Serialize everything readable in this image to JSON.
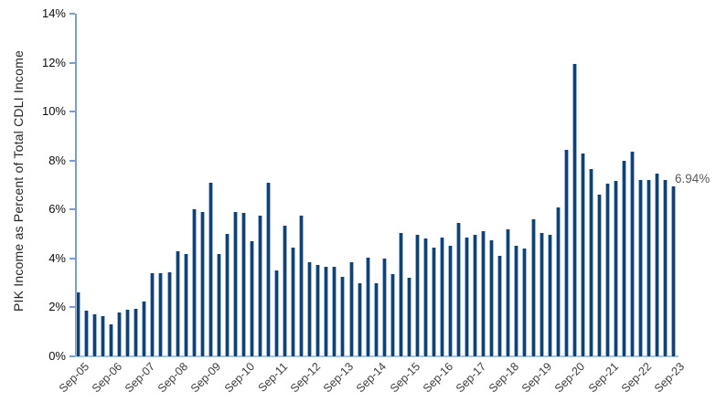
{
  "chart_data": {
    "type": "bar",
    "title": "",
    "xlabel": "",
    "ylabel": "PIK Income as Percent of Total CDLI Income",
    "ylim": [
      0,
      14
    ],
    "grid": false,
    "legend": null,
    "y_tick_labels": [
      "0%",
      "2%",
      "4%",
      "6%",
      "8%",
      "10%",
      "12%",
      "14%"
    ],
    "x_tick_labels": [
      "Sep-05",
      "Sep-06",
      "Sep-07",
      "Sep-08",
      "Sep-09",
      "Sep-10",
      "Sep-11",
      "Sep-12",
      "Sep-13",
      "Sep-14",
      "Sep-15",
      "Sep-16",
      "Sep-17",
      "Sep-18",
      "Sep-19",
      "Sep-20",
      "Sep-21",
      "Sep-22",
      "Sep-23"
    ],
    "x_tick_every_n_bars": 4,
    "bars_note": "73 quarterly bars from Sep-2005 through Sep-2023; x tick labels mark every 4th bar",
    "values": [
      2.6,
      1.85,
      1.7,
      1.65,
      1.3,
      1.8,
      1.9,
      1.95,
      2.25,
      3.4,
      3.4,
      3.45,
      4.3,
      4.2,
      6.0,
      5.9,
      7.1,
      4.2,
      5.0,
      5.9,
      5.85,
      4.7,
      5.75,
      7.1,
      3.5,
      5.35,
      4.45,
      5.75,
      3.85,
      3.75,
      3.65,
      3.65,
      3.25,
      3.85,
      3.0,
      4.05,
      3.0,
      4.0,
      3.35,
      5.05,
      3.2,
      4.95,
      4.8,
      4.45,
      4.85,
      4.5,
      5.45,
      4.85,
      4.95,
      5.1,
      4.75,
      4.1,
      5.2,
      4.5,
      4.4,
      5.6,
      5.05,
      4.95,
      6.1,
      8.45,
      11.95,
      8.3,
      7.65,
      6.6,
      7.05,
      7.15,
      8.0,
      8.35,
      7.2,
      7.2,
      7.45,
      7.2,
      6.94
    ],
    "annotation": {
      "text": "6.94%"
    },
    "colors": {
      "bar_fill": "#15416F",
      "bar_edge": "#9CB7DE",
      "vertical_axis": "#7B9BD5",
      "horizontal_axis": "#A9C3E8",
      "y_tick_text": "#0d0d0d",
      "x_tick_text": "#3d3d3d",
      "ylabel_text": "#262626",
      "annotation_text": "#595959",
      "background": "#ffffff"
    }
  }
}
